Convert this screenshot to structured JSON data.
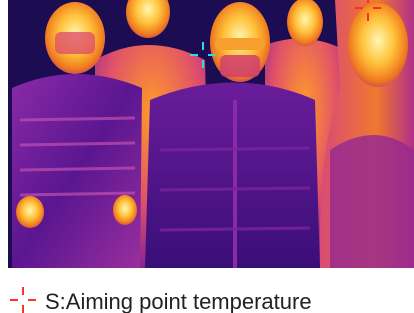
{
  "caption": {
    "text": "S:Aiming point temperature"
  }
}
